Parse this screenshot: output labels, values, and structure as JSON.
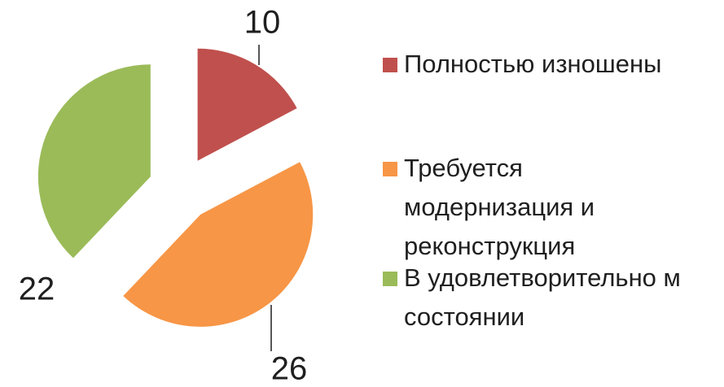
{
  "chart_data": {
    "type": "pie",
    "series": [
      {
        "name": "Полностью изношены",
        "color": "#c0504d"
      },
      {
        "name": "Требуется модернизация и реконструкция",
        "color": "#f79646"
      },
      {
        "name": "В удовлетворительно м состоянии",
        "color": "#9bbb59"
      }
    ],
    "values": [
      10,
      26,
      22
    ]
  }
}
